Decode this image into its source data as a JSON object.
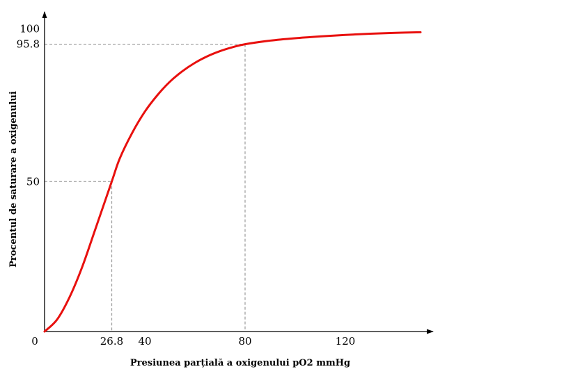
{
  "chart_data": {
    "type": "line",
    "title": "",
    "xlabel": "Presiunea parțială a oxigenului pO2 mmHg",
    "ylabel": "Procentul de saturare a oxigenului",
    "xlim": [
      0,
      150
    ],
    "ylim": [
      0,
      100
    ],
    "grid": false,
    "legend": "none",
    "x_ticks": [
      {
        "value": 0,
        "label": "0"
      },
      {
        "value": 26.8,
        "label": "26.8"
      },
      {
        "value": 40,
        "label": "40"
      },
      {
        "value": 80,
        "label": "80"
      },
      {
        "value": 120,
        "label": "120"
      }
    ],
    "y_ticks": [
      {
        "value": 50,
        "label": "50"
      },
      {
        "value": 95.8,
        "label": "95.8"
      },
      {
        "value": 100,
        "label": "100"
      }
    ],
    "reference_lines": [
      {
        "x": 26.8,
        "y": 50
      },
      {
        "x": 80,
        "y": 95.8
      }
    ],
    "series": [
      {
        "color": "#e8100e",
        "x": [
          0,
          5,
          10,
          15,
          20,
          26.8,
          30,
          35,
          40,
          45,
          50,
          55,
          60,
          65,
          70,
          75,
          80,
          90,
          100,
          110,
          120,
          130,
          140,
          150
        ],
        "y": [
          0,
          4,
          11.5,
          21.5,
          33.5,
          50,
          57.7,
          66.3,
          73.3,
          78.8,
          83.3,
          86.8,
          89.6,
          91.8,
          93.5,
          94.8,
          95.8,
          97,
          97.8,
          98.4,
          98.9,
          99.3,
          99.6,
          99.8
        ]
      }
    ],
    "colors": {
      "curve": "#e8100e",
      "axis": "#000000",
      "reference": "#a0a0a0"
    }
  }
}
